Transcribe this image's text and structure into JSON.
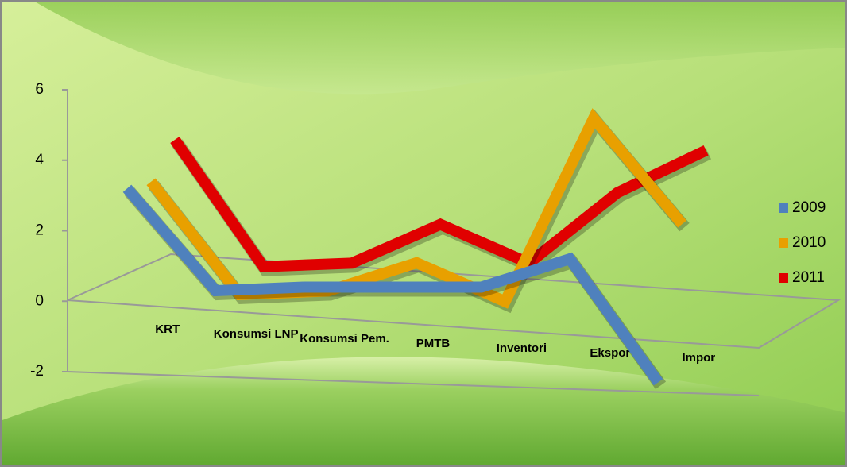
{
  "chart_data": {
    "type": "line3d",
    "categories": [
      "KRT",
      "Konsumsi LNP",
      "Konsumsi Pem.",
      "PMTB",
      "Inventori",
      "Ekspor",
      "Impor"
    ],
    "series": [
      {
        "name": "2009",
        "color": "#4f81bd",
        "values": [
          3.2,
          0.3,
          0.4,
          0.4,
          0.4,
          1.2,
          -2.3
        ]
      },
      {
        "name": "2010",
        "color": "#e8a000",
        "values": [
          3.3,
          0.1,
          0.2,
          1.0,
          -0.1,
          5.1,
          2.1
        ]
      },
      {
        "name": "2011",
        "color": "#e00000",
        "values": [
          4.4,
          0.8,
          0.9,
          2.0,
          0.9,
          2.9,
          4.1
        ]
      }
    ],
    "ylim": [
      -2,
      6
    ],
    "yticks": [
      -2,
      0,
      2,
      4,
      6
    ],
    "legend": "right"
  }
}
